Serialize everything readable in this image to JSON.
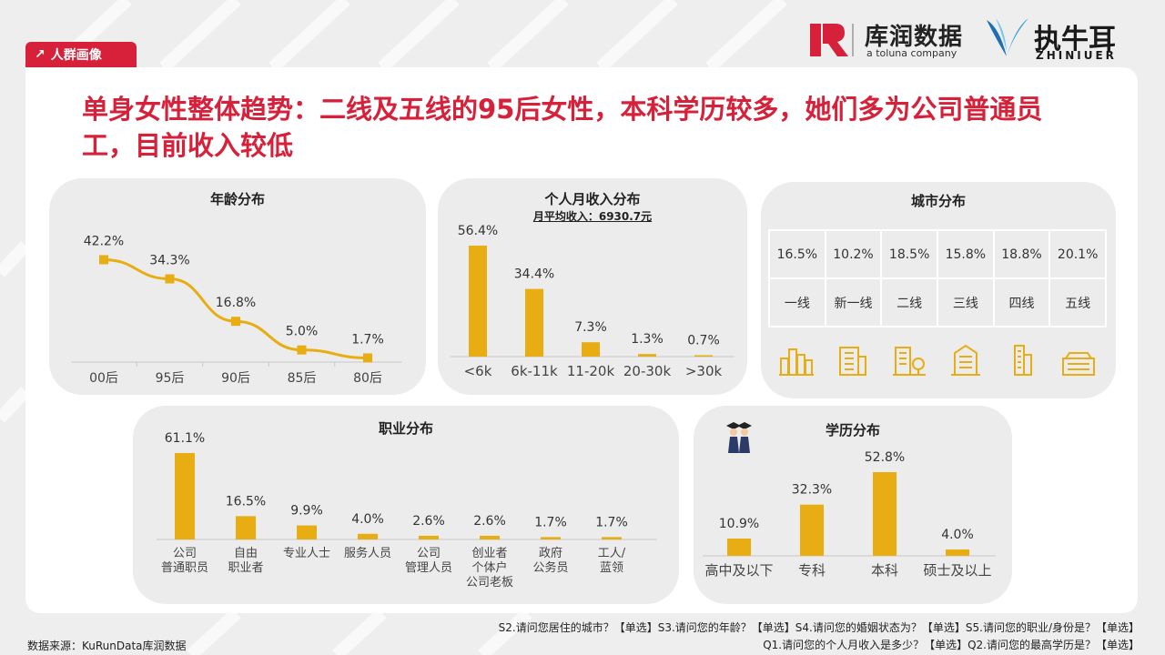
{
  "section_tag": "人群画像",
  "headline": "单身女性整体趋势：二线及五线的95后女性，本科学历较多，她们多为公司普通员工，目前收入较低",
  "logos": {
    "kurun_cn": "库润数据",
    "kurun_en": "a toluna company",
    "zhiniu_cn": "执牛耳",
    "zhiniu_en": "ZHINIUER"
  },
  "colors": {
    "accent": "#d7213a",
    "bar": "#e8ad13",
    "card": "#ececec"
  },
  "chart_data": [
    {
      "id": "age",
      "type": "line",
      "title": "年龄分布",
      "categories": [
        "00后",
        "95后",
        "90后",
        "85后",
        "80后"
      ],
      "values": [
        42.2,
        34.3,
        16.8,
        5.0,
        1.7
      ],
      "labels": [
        "42.2%",
        "34.3%",
        "16.8%",
        "5.0%",
        "1.7%"
      ],
      "ylim": [
        0,
        60
      ],
      "grid": false
    },
    {
      "id": "income",
      "type": "bar",
      "title": "个人月收入分布",
      "subtitle": "月平均收入：6930.7元",
      "categories": [
        "<6k",
        "6k-11k",
        "11-20k",
        "20-30k",
        ">30k"
      ],
      "values": [
        56.4,
        34.4,
        7.3,
        1.3,
        0.7
      ],
      "labels": [
        "56.4%",
        "34.4%",
        "7.3%",
        "1.3%",
        "0.7%"
      ],
      "ylim": [
        0,
        56.4
      ]
    },
    {
      "id": "city",
      "type": "table",
      "title": "城市分布",
      "values": [
        "16.5%",
        "10.2%",
        "18.5%",
        "15.8%",
        "18.8%",
        "20.1%"
      ],
      "categories": [
        "一线",
        "新一线",
        "二线",
        "三线",
        "四线",
        "五线"
      ]
    },
    {
      "id": "occupation",
      "type": "bar",
      "title": "职业分布",
      "categories": [
        [
          "公司",
          "普通职员"
        ],
        [
          "自由",
          "职业者"
        ],
        [
          "专业人士"
        ],
        [
          "服务人员"
        ],
        [
          "公司",
          "管理人员"
        ],
        [
          "创业者",
          "个体户",
          "公司老板"
        ],
        [
          "政府",
          "公务员"
        ],
        [
          "工人/",
          "蓝领"
        ]
      ],
      "values": [
        61.1,
        16.5,
        9.9,
        4.0,
        2.6,
        2.6,
        1.7,
        1.7
      ],
      "labels": [
        "61.1%",
        "16.5%",
        "9.9%",
        "4.0%",
        "2.6%",
        "2.6%",
        "1.7%",
        "1.7%"
      ],
      "ylim": [
        0,
        61.1
      ]
    },
    {
      "id": "education",
      "type": "bar",
      "title": "学历分布",
      "categories": [
        "高中及以下",
        "专科",
        "本科",
        "硕士及以上"
      ],
      "values": [
        10.9,
        32.3,
        52.8,
        4.0
      ],
      "labels": [
        "10.9%",
        "32.3%",
        "52.8%",
        "4.0%"
      ],
      "ylim": [
        0,
        52.8
      ]
    }
  ],
  "footer": {
    "source": "数据来源：KuRunData库润数据",
    "note_line1": "S2.请问您居住的城市？【单选】S3.请问您的年龄？【单选】S4.请问您的婚姻状态为？【单选】S5.请问您的职业/身份是？【单选】",
    "note_line2": "Q1.请问您的个人月收入是多少？【单选】Q2.请问您的最高学历是？【单选】"
  }
}
